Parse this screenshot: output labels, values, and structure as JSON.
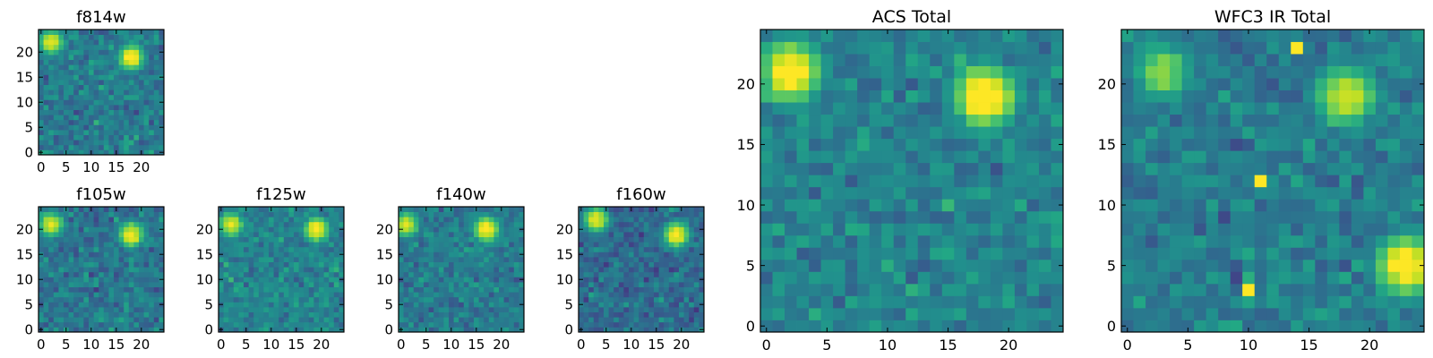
{
  "chart_data": [
    {
      "type": "heatmap",
      "title": "f814w",
      "xlim": [
        0,
        25
      ],
      "ylim": [
        0,
        25
      ],
      "xticks": [
        "0",
        "5",
        "10",
        "15",
        "20"
      ],
      "yticks": [
        "0",
        "5",
        "10",
        "15",
        "20"
      ],
      "colormap": "viridis",
      "grid": false,
      "sources": [
        {
          "x": 2,
          "y": 22,
          "peak": 0.85
        },
        {
          "x": 18,
          "y": 19,
          "peak": 0.95
        }
      ],
      "background": 0.42
    },
    {
      "type": "heatmap",
      "title": "f105w",
      "xlim": [
        0,
        25
      ],
      "ylim": [
        0,
        25
      ],
      "xticks": [
        "0",
        "5",
        "10",
        "15",
        "20"
      ],
      "yticks": [
        "0",
        "5",
        "10",
        "15",
        "20"
      ],
      "colormap": "viridis",
      "grid": false,
      "sources": [
        {
          "x": 2,
          "y": 21,
          "peak": 0.85
        },
        {
          "x": 18,
          "y": 19,
          "peak": 0.9
        }
      ],
      "background": 0.4
    },
    {
      "type": "heatmap",
      "title": "f125w",
      "xlim": [
        0,
        25
      ],
      "ylim": [
        0,
        25
      ],
      "xticks": [
        "0",
        "5",
        "10",
        "15",
        "20"
      ],
      "yticks": [
        "0",
        "5",
        "10",
        "15",
        "20"
      ],
      "colormap": "viridis",
      "grid": false,
      "sources": [
        {
          "x": 2,
          "y": 21,
          "peak": 0.85
        },
        {
          "x": 19,
          "y": 20,
          "peak": 0.9
        }
      ],
      "background": 0.45
    },
    {
      "type": "heatmap",
      "title": "f140w",
      "xlim": [
        0,
        25
      ],
      "ylim": [
        0,
        25
      ],
      "xticks": [
        "0",
        "5",
        "10",
        "15",
        "20"
      ],
      "yticks": [
        "0",
        "5",
        "10",
        "15",
        "20"
      ],
      "colormap": "viridis",
      "grid": false,
      "sources": [
        {
          "x": 1,
          "y": 21,
          "peak": 0.85
        },
        {
          "x": 17,
          "y": 20,
          "peak": 0.95
        }
      ],
      "background": 0.42
    },
    {
      "type": "heatmap",
      "title": "f160w",
      "xlim": [
        0,
        25
      ],
      "ylim": [
        0,
        25
      ],
      "xticks": [
        "0",
        "5",
        "10",
        "15",
        "20"
      ],
      "yticks": [
        "0",
        "5",
        "10",
        "15",
        "20"
      ],
      "colormap": "viridis",
      "grid": false,
      "sources": [
        {
          "x": 3,
          "y": 22,
          "peak": 0.9
        },
        {
          "x": 19,
          "y": 19,
          "peak": 0.95
        }
      ],
      "background": 0.35
    },
    {
      "type": "heatmap",
      "title": "ACS Total",
      "xlim": [
        0,
        25
      ],
      "ylim": [
        0,
        25
      ],
      "xticks": [
        "0",
        "5",
        "10",
        "15",
        "20"
      ],
      "yticks": [
        "0",
        "5",
        "10",
        "15",
        "20"
      ],
      "colormap": "viridis",
      "grid": false,
      "sources": [
        {
          "x": 2,
          "y": 21,
          "peak": 0.95
        },
        {
          "x": 18,
          "y": 19,
          "peak": 1.0
        }
      ],
      "background": 0.45
    },
    {
      "type": "heatmap",
      "title": "WFC3 IR Total",
      "xlim": [
        0,
        25
      ],
      "ylim": [
        0,
        25
      ],
      "xticks": [
        "0",
        "5",
        "10",
        "15",
        "20"
      ],
      "yticks": [
        "0",
        "5",
        "10",
        "15",
        "20"
      ],
      "colormap": "viridis",
      "grid": false,
      "sources": [
        {
          "x": 18,
          "y": 19,
          "peak": 0.85
        },
        {
          "x": 3,
          "y": 21,
          "peak": 0.7
        },
        {
          "x": 11,
          "y": 12,
          "peak": 1.0
        },
        {
          "x": 10,
          "y": 3,
          "peak": 1.0
        },
        {
          "x": 14,
          "y": 23,
          "peak": 1.0
        },
        {
          "x": 23,
          "y": 5,
          "peak": 0.95
        }
      ],
      "background": 0.42
    }
  ]
}
